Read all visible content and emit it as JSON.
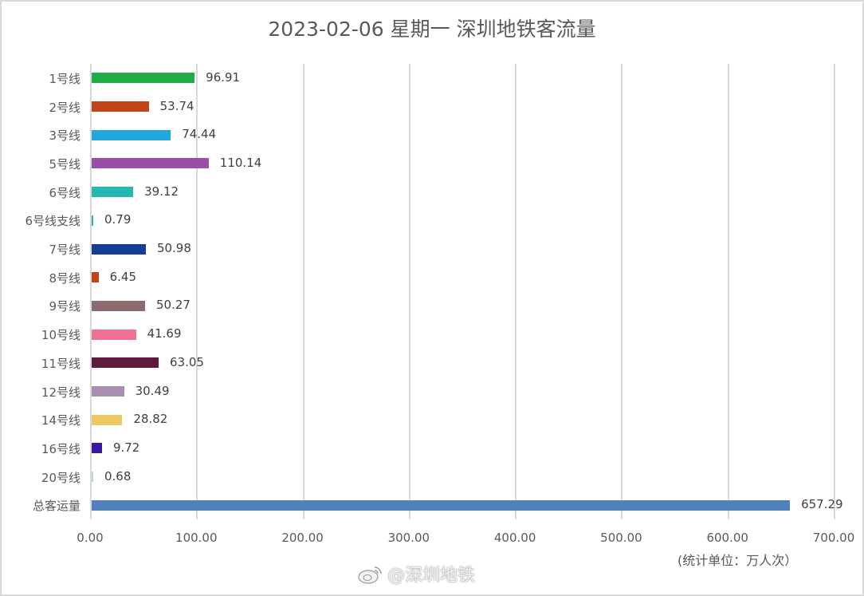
{
  "title": "2023-02-06 星期一 深圳地铁客流量",
  "unit_note": "(统计单位：万人次）",
  "watermark": "@深圳地铁",
  "chart_data": {
    "type": "bar",
    "orientation": "horizontal",
    "title": "2023-02-06 星期一 深圳地铁客流量",
    "xlabel": "(统计单位：万人次）",
    "ylabel": "",
    "xlim": [
      0,
      700
    ],
    "grid": true,
    "legend": "none",
    "x_ticks": [
      "0.00",
      "100.00",
      "200.00",
      "300.00",
      "400.00",
      "500.00",
      "600.00",
      "700.00"
    ],
    "categories": [
      "1号线",
      "2号线",
      "3号线",
      "5号线",
      "6号线",
      "6号线支线",
      "7号线",
      "8号线",
      "9号线",
      "10号线",
      "11号线",
      "12号线",
      "14号线",
      "16号线",
      "20号线",
      "总客运量"
    ],
    "values": [
      96.91,
      53.74,
      74.44,
      110.14,
      39.12,
      0.79,
      50.98,
      6.45,
      50.27,
      41.69,
      63.05,
      30.49,
      28.82,
      9.72,
      0.68,
      657.29
    ],
    "labels": [
      "96.91",
      "53.74",
      "74.44",
      "110.14",
      "39.12",
      "0.79",
      "50.98",
      "6.45",
      "50.27",
      "41.69",
      "63.05",
      "30.49",
      "28.82",
      "9.72",
      "0.68",
      "657.29"
    ],
    "colors": [
      "#1fad48",
      "#c0461a",
      "#1ea8dc",
      "#9a4ea8",
      "#25b8b0",
      "#25b8b0",
      "#123f96",
      "#c0461a",
      "#8a6b70",
      "#f07292",
      "#5e1b3e",
      "#a88faf",
      "#ecc962",
      "#3b17a6",
      "#a8dde6",
      "#4f81bd"
    ]
  }
}
